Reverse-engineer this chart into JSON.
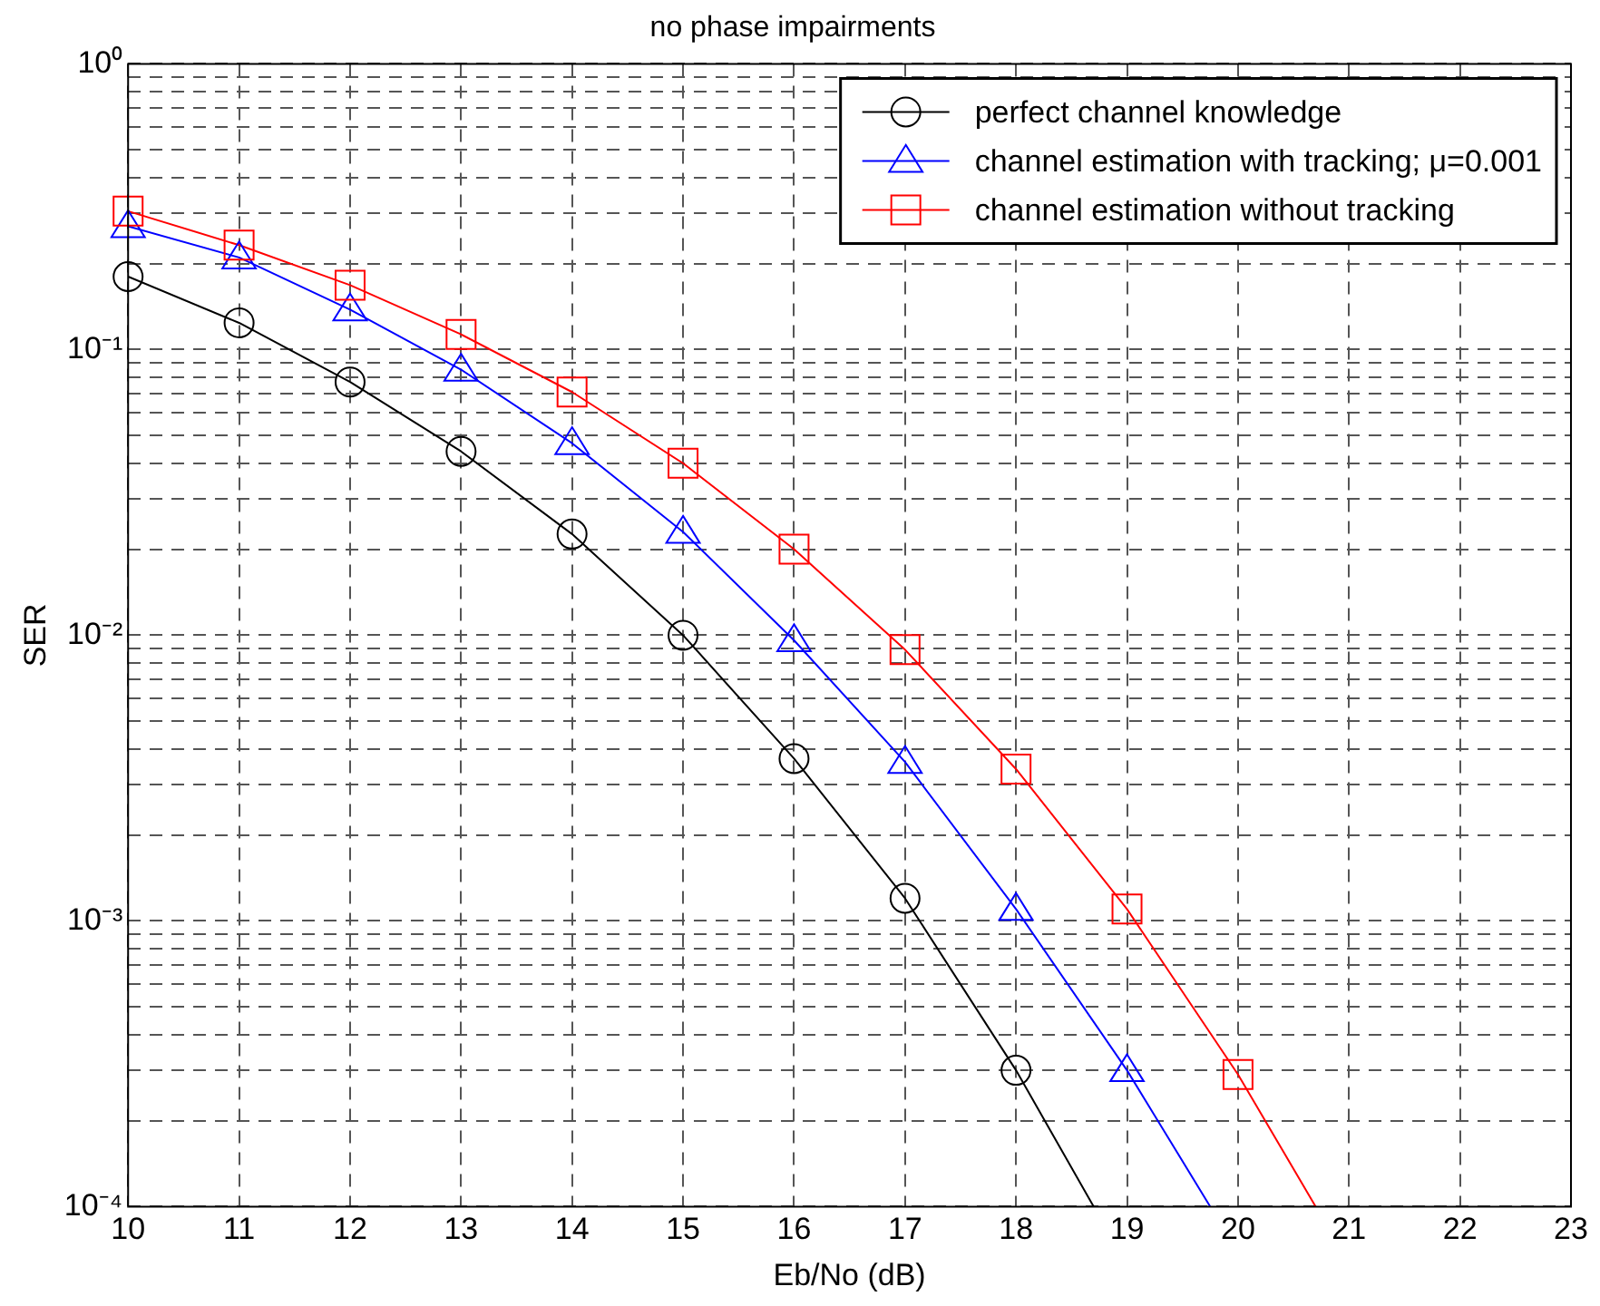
{
  "chart_data": {
    "type": "line",
    "title": "no phase impairments",
    "xlabel": "Eb/No (dB)",
    "ylabel": "SER",
    "log": "y",
    "grid": true,
    "legend": "top right",
    "xlim": [
      10,
      23
    ],
    "xticks": [
      10,
      11,
      12,
      13,
      14,
      15,
      16,
      17,
      18,
      19,
      20,
      21,
      22,
      23
    ],
    "ylim": [
      0.0001,
      1
    ],
    "yticks": [
      {
        "value": 0.0001,
        "label": "10⁻⁴"
      },
      {
        "value": 0.0002,
        "label": null
      },
      {
        "value": 0.0003,
        "label": null
      },
      {
        "value": 0.0004,
        "label": null
      },
      {
        "value": 0.0005,
        "label": null
      },
      {
        "value": 0.0006,
        "label": null
      },
      {
        "value": 0.0007,
        "label": null
      },
      {
        "value": 0.0008,
        "label": null
      },
      {
        "value": 0.0009,
        "label": null
      },
      {
        "value": 0.001,
        "label": "10⁻³"
      },
      {
        "value": 0.002,
        "label": null
      },
      {
        "value": 0.003,
        "label": null
      },
      {
        "value": 0.004,
        "label": null
      },
      {
        "value": 0.005,
        "label": null
      },
      {
        "value": 0.006,
        "label": null
      },
      {
        "value": 0.007,
        "label": null
      },
      {
        "value": 0.008,
        "label": null
      },
      {
        "value": 0.009,
        "label": null
      },
      {
        "value": 0.01,
        "label": "10⁻²"
      },
      {
        "value": 0.02,
        "label": null
      },
      {
        "value": 0.03,
        "label": null
      },
      {
        "value": 0.04,
        "label": null
      },
      {
        "value": 0.05,
        "label": null
      },
      {
        "value": 0.06,
        "label": null
      },
      {
        "value": 0.07,
        "label": null
      },
      {
        "value": 0.08,
        "label": null
      },
      {
        "value": 0.09,
        "label": null
      },
      {
        "value": 0.1,
        "label": "10⁻¹"
      },
      {
        "value": 0.2,
        "label": null
      },
      {
        "value": 0.3,
        "label": null
      },
      {
        "value": 0.4,
        "label": null
      },
      {
        "value": 0.5,
        "label": null
      },
      {
        "value": 0.6,
        "label": null
      },
      {
        "value": 0.7,
        "label": null
      },
      {
        "value": 0.8,
        "label": null
      },
      {
        "value": 0.9,
        "label": null
      },
      {
        "value": 1,
        "label": "10⁰"
      }
    ],
    "series": [
      {
        "name": "perfect channel knowledge",
        "color": "#000000",
        "marker": "circle",
        "x": [
          10,
          11,
          12,
          13,
          14,
          15,
          16,
          17,
          18,
          18.7
        ],
        "values": [
          0.18,
          0.124,
          0.077,
          0.044,
          0.0226,
          0.01,
          0.0037,
          0.0012,
          0.0003,
          0.0001
        ]
      },
      {
        "name": "channel estimation with tracking; μ=0.001",
        "color": "#0000ff",
        "marker": "triangle",
        "x": [
          10,
          11,
          12,
          13,
          14,
          15,
          16,
          17,
          18,
          19,
          19.75
        ],
        "values": [
          0.27,
          0.21,
          0.138,
          0.085,
          0.047,
          0.023,
          0.0096,
          0.0036,
          0.0011,
          0.0003,
          0.0001
        ]
      },
      {
        "name": "channel estimation without tracking",
        "color": "#ff0000",
        "marker": "square",
        "x": [
          10,
          11,
          12,
          13,
          14,
          15,
          16,
          17,
          18,
          19,
          20,
          20.7
        ],
        "values": [
          0.305,
          0.232,
          0.168,
          0.113,
          0.071,
          0.04,
          0.02,
          0.0089,
          0.0034,
          0.0011,
          0.00029,
          0.0001
        ]
      }
    ]
  }
}
